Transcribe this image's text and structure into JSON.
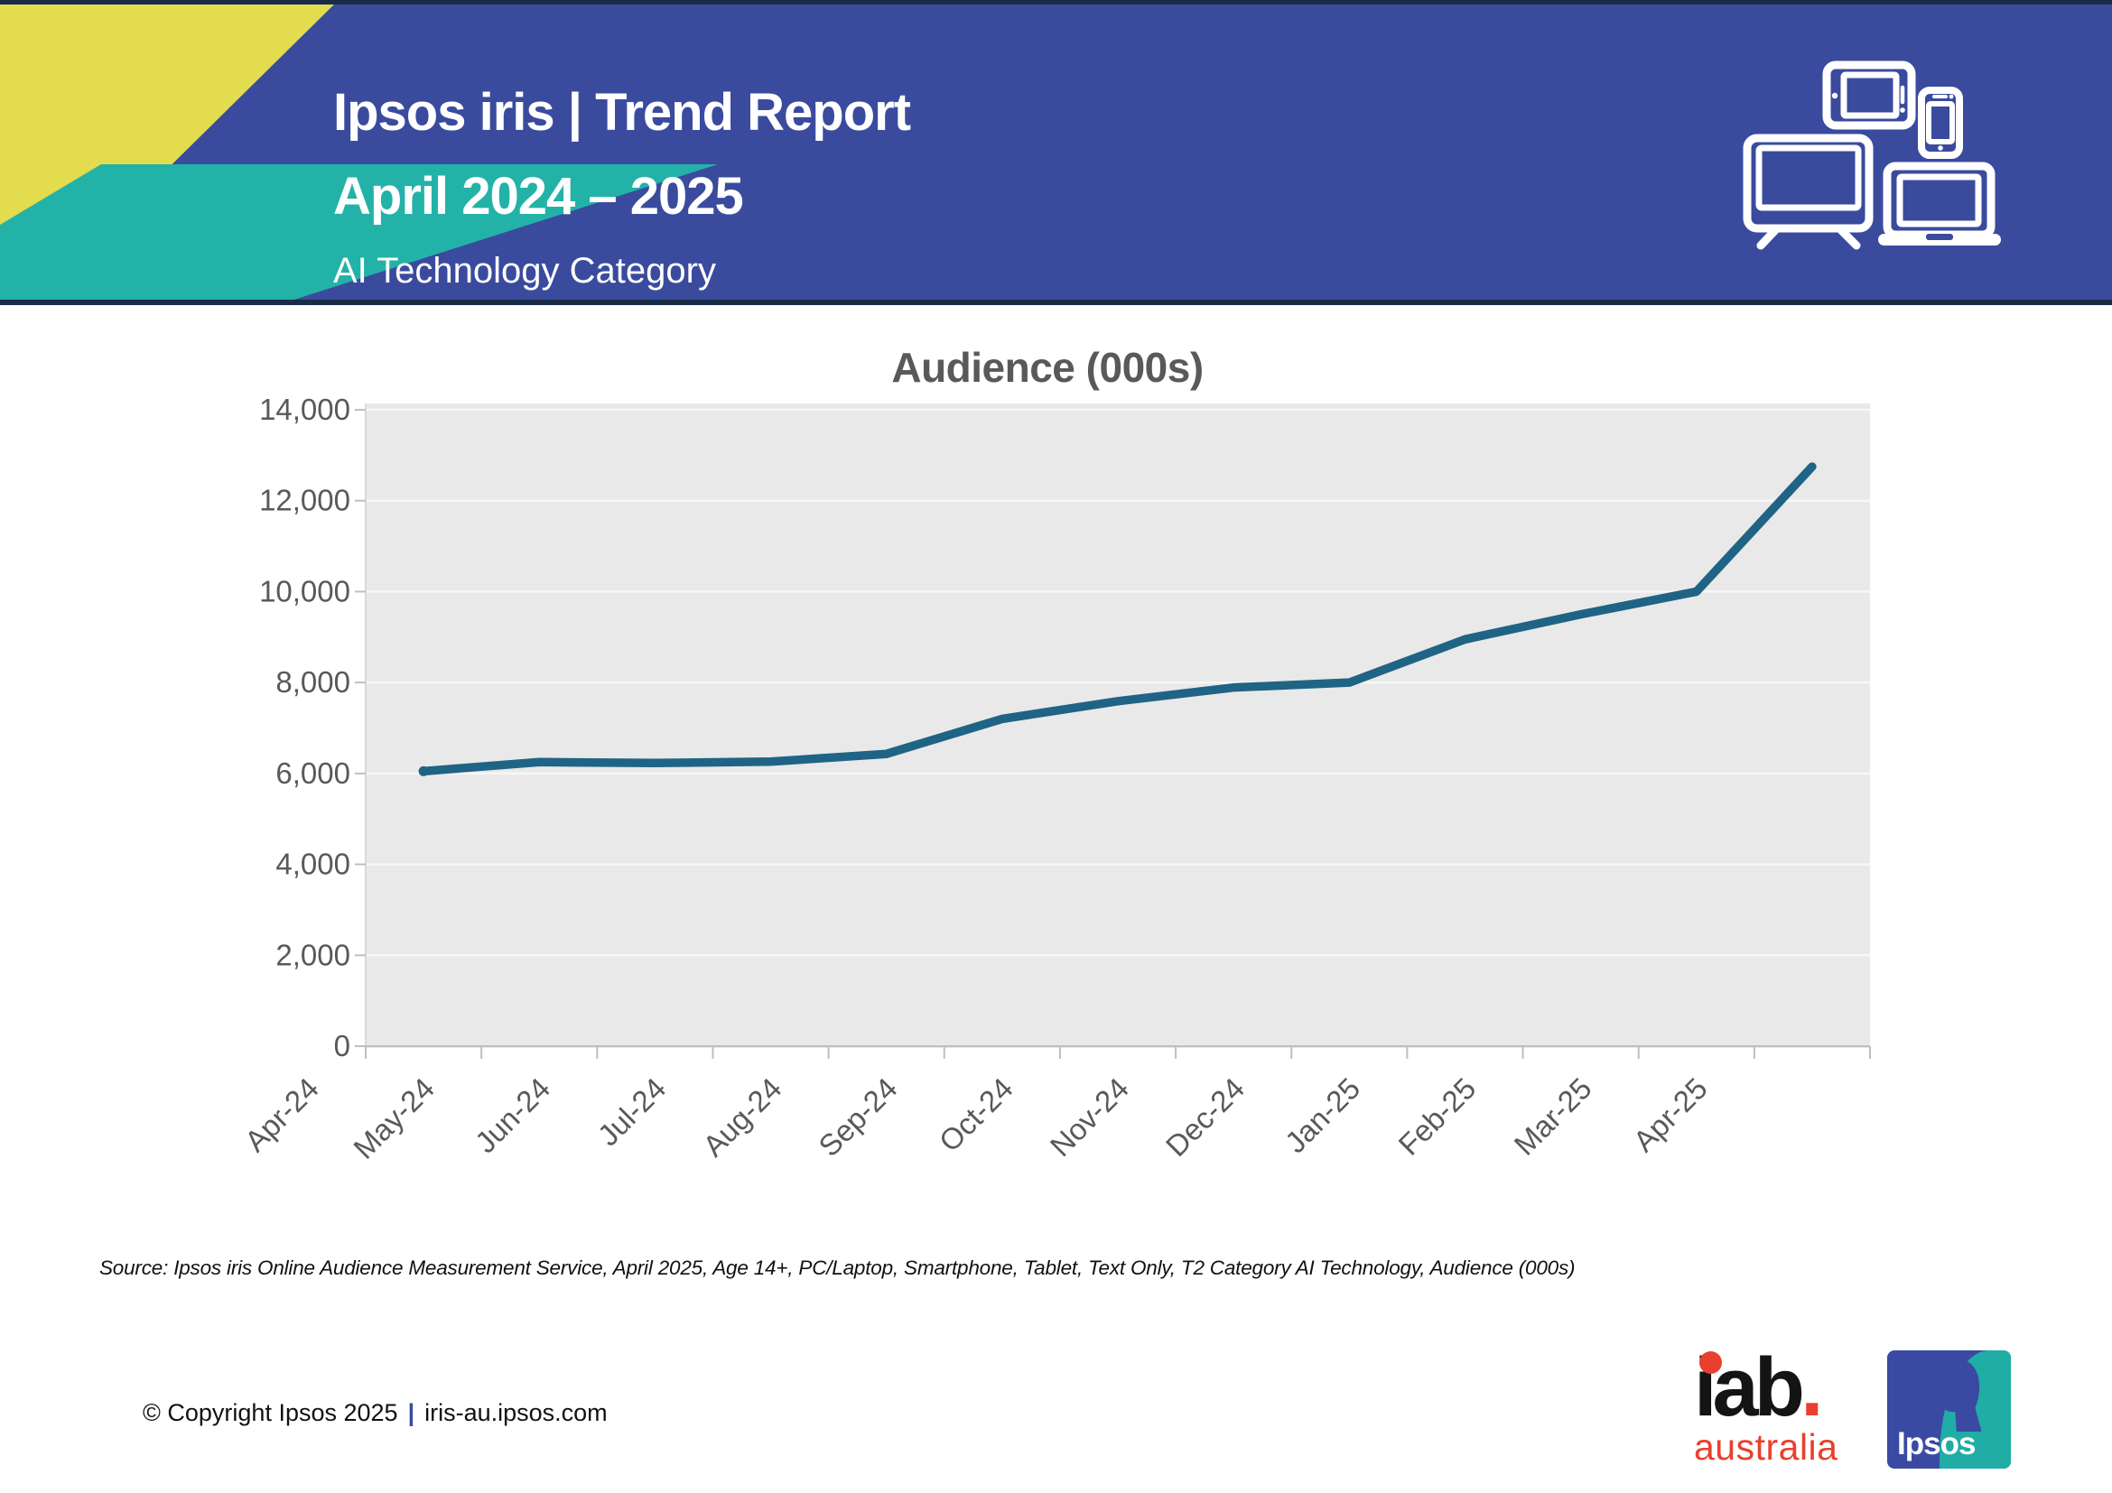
{
  "header": {
    "title_line1": "Ipsos iris | Trend Report",
    "title_line2": "April 2024 – 2025",
    "subtitle": "AI Technology Category",
    "icons": [
      "tablet-icon",
      "smartphone-icon",
      "tv-icon",
      "laptop-icon"
    ],
    "colors": {
      "banner_blue": "#3A4B9E",
      "accent_yellow": "#E3DC4F",
      "accent_teal": "#23B2A7",
      "dark_strip": "#182C47"
    }
  },
  "chart_data": {
    "type": "line",
    "title": "Audience (000s)",
    "categories": [
      "Apr-24",
      "May-24",
      "Jun-24",
      "Jul-24",
      "Aug-24",
      "Sep-24",
      "Oct-24",
      "Nov-24",
      "Dec-24",
      "Jan-25",
      "Feb-25",
      "Mar-25",
      "Apr-25"
    ],
    "series": [
      {
        "name": "Audience (000s)",
        "values": [
          6050,
          6250,
          6230,
          6260,
          6430,
          7200,
          7590,
          7890,
          8000,
          8950,
          9500,
          10000,
          12750
        ],
        "color": "#1F6485"
      }
    ],
    "ylim": [
      0,
      14000
    ],
    "ytick_step": 2000,
    "xlabel": "",
    "ylabel": "",
    "grid": "horizontal",
    "legend": "none",
    "plot_bg": "#E9E9E9",
    "grid_color": "#F7F7F7",
    "axis_color": "#BFBFBF",
    "label_color": "#595959"
  },
  "footer": {
    "source": "Source: Ipsos iris Online Audience Measurement Service, April 2025, Age 14+, PC/Laptop, Smartphone, Tablet, Text Only, T2 Category AI Technology, Audience (000s)",
    "copyright": "© Copyright Ipsos 2025",
    "separator": "|",
    "website": "iris-au.ipsos.com",
    "iab_logo": {
      "word": "iab",
      "dot": ".",
      "line2": "australia"
    },
    "ipsos_logo": {
      "text": "Ipsos"
    }
  }
}
